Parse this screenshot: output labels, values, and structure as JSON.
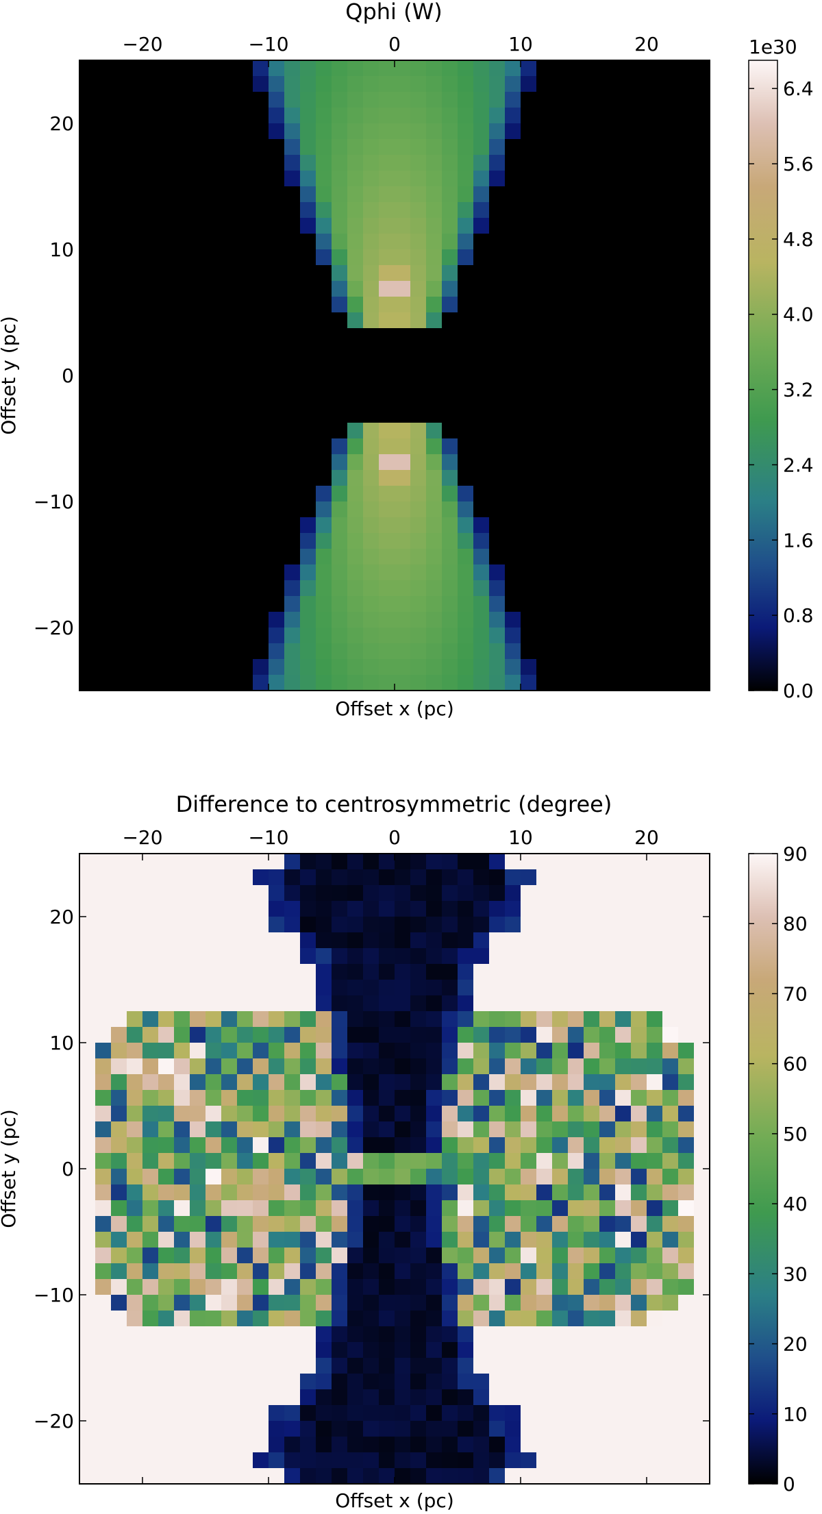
{
  "chart_data": [
    {
      "type": "heatmap",
      "title": "Qphi (W)",
      "xlabel": "Offset x (pc)",
      "ylabel": "Offset y (pc)",
      "xlim": [
        -25,
        25
      ],
      "ylim": [
        -25,
        25
      ],
      "grid_n": 40,
      "x_ticks": [
        -20,
        -10,
        0,
        10,
        20
      ],
      "x_tick_labels": [
        "−20",
        "−10",
        "0",
        "10",
        "20"
      ],
      "y_ticks": [
        20,
        10,
        0,
        -10,
        -20
      ],
      "y_tick_labels": [
        "20",
        "10",
        "0",
        "−10",
        "−20"
      ],
      "colorbar": {
        "min": 0.0,
        "max": 6.7,
        "ticks": [
          0.0,
          0.8,
          1.6,
          2.4,
          3.2,
          4.0,
          4.8,
          5.6,
          6.4
        ],
        "tick_labels": [
          "0.0",
          "0.8",
          "1.6",
          "2.4",
          "3.2",
          "4.0",
          "4.8",
          "5.6",
          "6.4"
        ],
        "scale_label": "1e30"
      },
      "colormap": "gist_earth",
      "model": {
        "kind": "double_cone",
        "y_gap": 3.5,
        "top_half_width": 11.5,
        "bottom_half_width": 4,
        "peak": 6.6,
        "peak_y": 7
      }
    },
    {
      "type": "heatmap",
      "title": "Difference to centrosymmetric (degree)",
      "xlabel": "Offset x (pc)",
      "ylabel": "Offset y (pc)",
      "xlim": [
        -25,
        25
      ],
      "ylim": [
        -25,
        25
      ],
      "grid_n": 40,
      "x_ticks": [
        -20,
        -10,
        0,
        10,
        20
      ],
      "x_tick_labels": [
        "−20",
        "−10",
        "0",
        "10",
        "20"
      ],
      "y_ticks": [
        20,
        10,
        0,
        -10,
        -20
      ],
      "y_tick_labels": [
        "20",
        "10",
        "0",
        "−10",
        "−20"
      ],
      "colorbar": {
        "min": 0,
        "max": 90,
        "ticks": [
          0,
          10,
          20,
          30,
          40,
          50,
          60,
          70,
          80,
          90
        ],
        "tick_labels": [
          "0",
          "10",
          "20",
          "30",
          "40",
          "50",
          "60",
          "70",
          "80",
          "90"
        ]
      },
      "colormap": "gist_earth",
      "model": {
        "kind": "cross",
        "background_value": 89,
        "central_column_value": 4,
        "wing_y_extent": 13,
        "wing_x_extent": 25
      }
    }
  ]
}
